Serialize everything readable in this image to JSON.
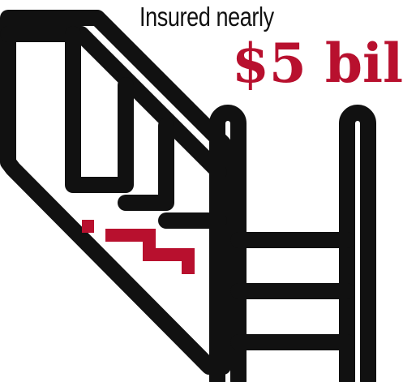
{
  "caption": {
    "line1": "Insured nearly",
    "amount": "$5 bil"
  },
  "colors": {
    "ink": "#111111",
    "accent": "#b8102e",
    "background": "#ffffff"
  },
  "icons": {
    "illustration": "staircase-icon"
  }
}
